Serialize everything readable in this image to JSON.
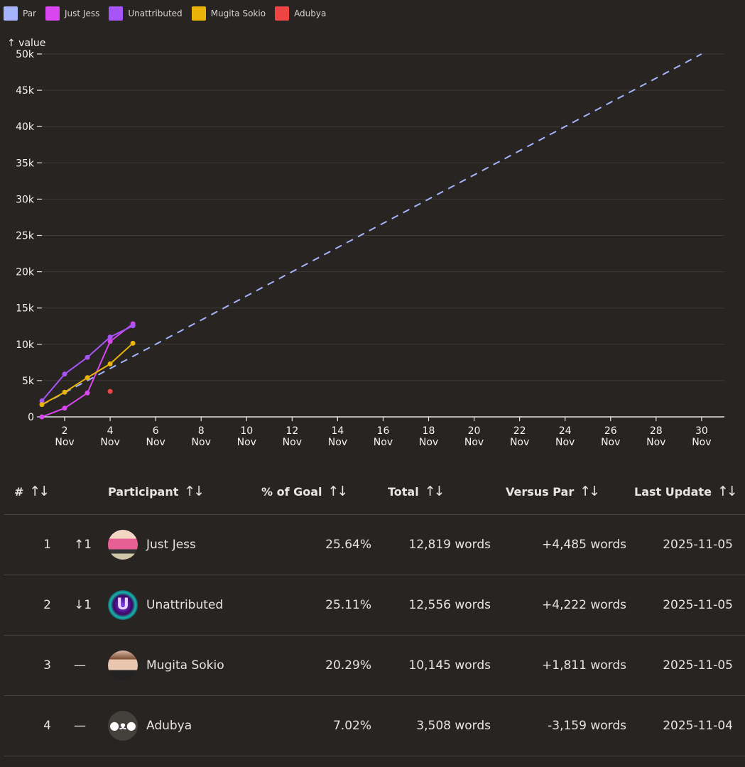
{
  "legend": [
    {
      "label": "Par",
      "color": "#a5b4fc"
    },
    {
      "label": "Just Jess",
      "color": "#d946ef"
    },
    {
      "label": "Unattributed",
      "color": "#a855f7"
    },
    {
      "label": "Mugita Sokio",
      "color": "#eab308"
    },
    {
      "label": "Adubya",
      "color": "#ef4444"
    }
  ],
  "chart_data": {
    "type": "line",
    "title": "",
    "xlabel": "",
    "ylabel": "↑ value",
    "ylim": [
      0,
      50000
    ],
    "xlim": [
      "2025-11-01",
      "2025-11-30"
    ],
    "grid": true,
    "legend_position": "top-left",
    "y_ticks": [
      "0",
      "5k",
      "10k",
      "15k",
      "20k",
      "25k",
      "30k",
      "35k",
      "40k",
      "45k",
      "50k"
    ],
    "x_ticks": [
      {
        "day": "2",
        "month": "Nov"
      },
      {
        "day": "4",
        "month": "Nov"
      },
      {
        "day": "6",
        "month": "Nov"
      },
      {
        "day": "8",
        "month": "Nov"
      },
      {
        "day": "10",
        "month": "Nov"
      },
      {
        "day": "12",
        "month": "Nov"
      },
      {
        "day": "14",
        "month": "Nov"
      },
      {
        "day": "16",
        "month": "Nov"
      },
      {
        "day": "18",
        "month": "Nov"
      },
      {
        "day": "20",
        "month": "Nov"
      },
      {
        "day": "22",
        "month": "Nov"
      },
      {
        "day": "24",
        "month": "Nov"
      },
      {
        "day": "26",
        "month": "Nov"
      },
      {
        "day": "28",
        "month": "Nov"
      },
      {
        "day": "30",
        "month": "Nov"
      }
    ],
    "series": [
      {
        "name": "Par",
        "color": "#a5b4fc",
        "style": "dashed",
        "x": [
          1,
          30
        ],
        "values": [
          1667,
          50000
        ]
      },
      {
        "name": "Just Jess",
        "color": "#d946ef",
        "style": "solid",
        "x": [
          1,
          2,
          3,
          4,
          5
        ],
        "values": [
          0,
          1200,
          3300,
          10400,
          12819
        ]
      },
      {
        "name": "Unattributed",
        "color": "#a855f7",
        "style": "solid",
        "x": [
          1,
          2,
          3,
          4,
          5
        ],
        "values": [
          2200,
          5900,
          8200,
          11000,
          12556
        ]
      },
      {
        "name": "Mugita Sokio",
        "color": "#eab308",
        "style": "solid",
        "x": [
          1,
          2,
          3,
          4,
          5
        ],
        "values": [
          1700,
          3400,
          5400,
          7300,
          10145
        ]
      },
      {
        "name": "Adubya",
        "color": "#ef4444",
        "style": "point",
        "x": [
          4
        ],
        "values": [
          3508
        ]
      }
    ]
  },
  "table": {
    "headers": {
      "rank": "#",
      "participant": "Participant",
      "percent": "% of Goal",
      "total": "Total",
      "versus": "Versus Par",
      "updated": "Last Update"
    },
    "sort_icon": "↑↓",
    "rows": [
      {
        "rank": "1",
        "change": "↑1",
        "avatar": "typewriter-avatar",
        "name": "Just Jess",
        "percent": "25.64%",
        "total": "12,819 words",
        "versus": "+4,485 words",
        "updated": "2025-11-05"
      },
      {
        "rank": "2",
        "change": "↓1",
        "avatar": "u-logo-avatar",
        "name": "Unattributed",
        "percent": "25.11%",
        "total": "12,556 words",
        "versus": "+4,222 words",
        "updated": "2025-11-05"
      },
      {
        "rank": "3",
        "change": "—",
        "avatar": "portrait-avatar",
        "name": "Mugita Sokio",
        "percent": "20.29%",
        "total": "10,145 words",
        "versus": "+1,811 words",
        "updated": "2025-11-05"
      },
      {
        "rank": "4",
        "change": "—",
        "avatar": "bear-avatar",
        "name": "Adubya",
        "percent": "7.02%",
        "total": "3,508 words",
        "versus": "-3,159 words",
        "updated": "2025-11-04"
      }
    ]
  }
}
